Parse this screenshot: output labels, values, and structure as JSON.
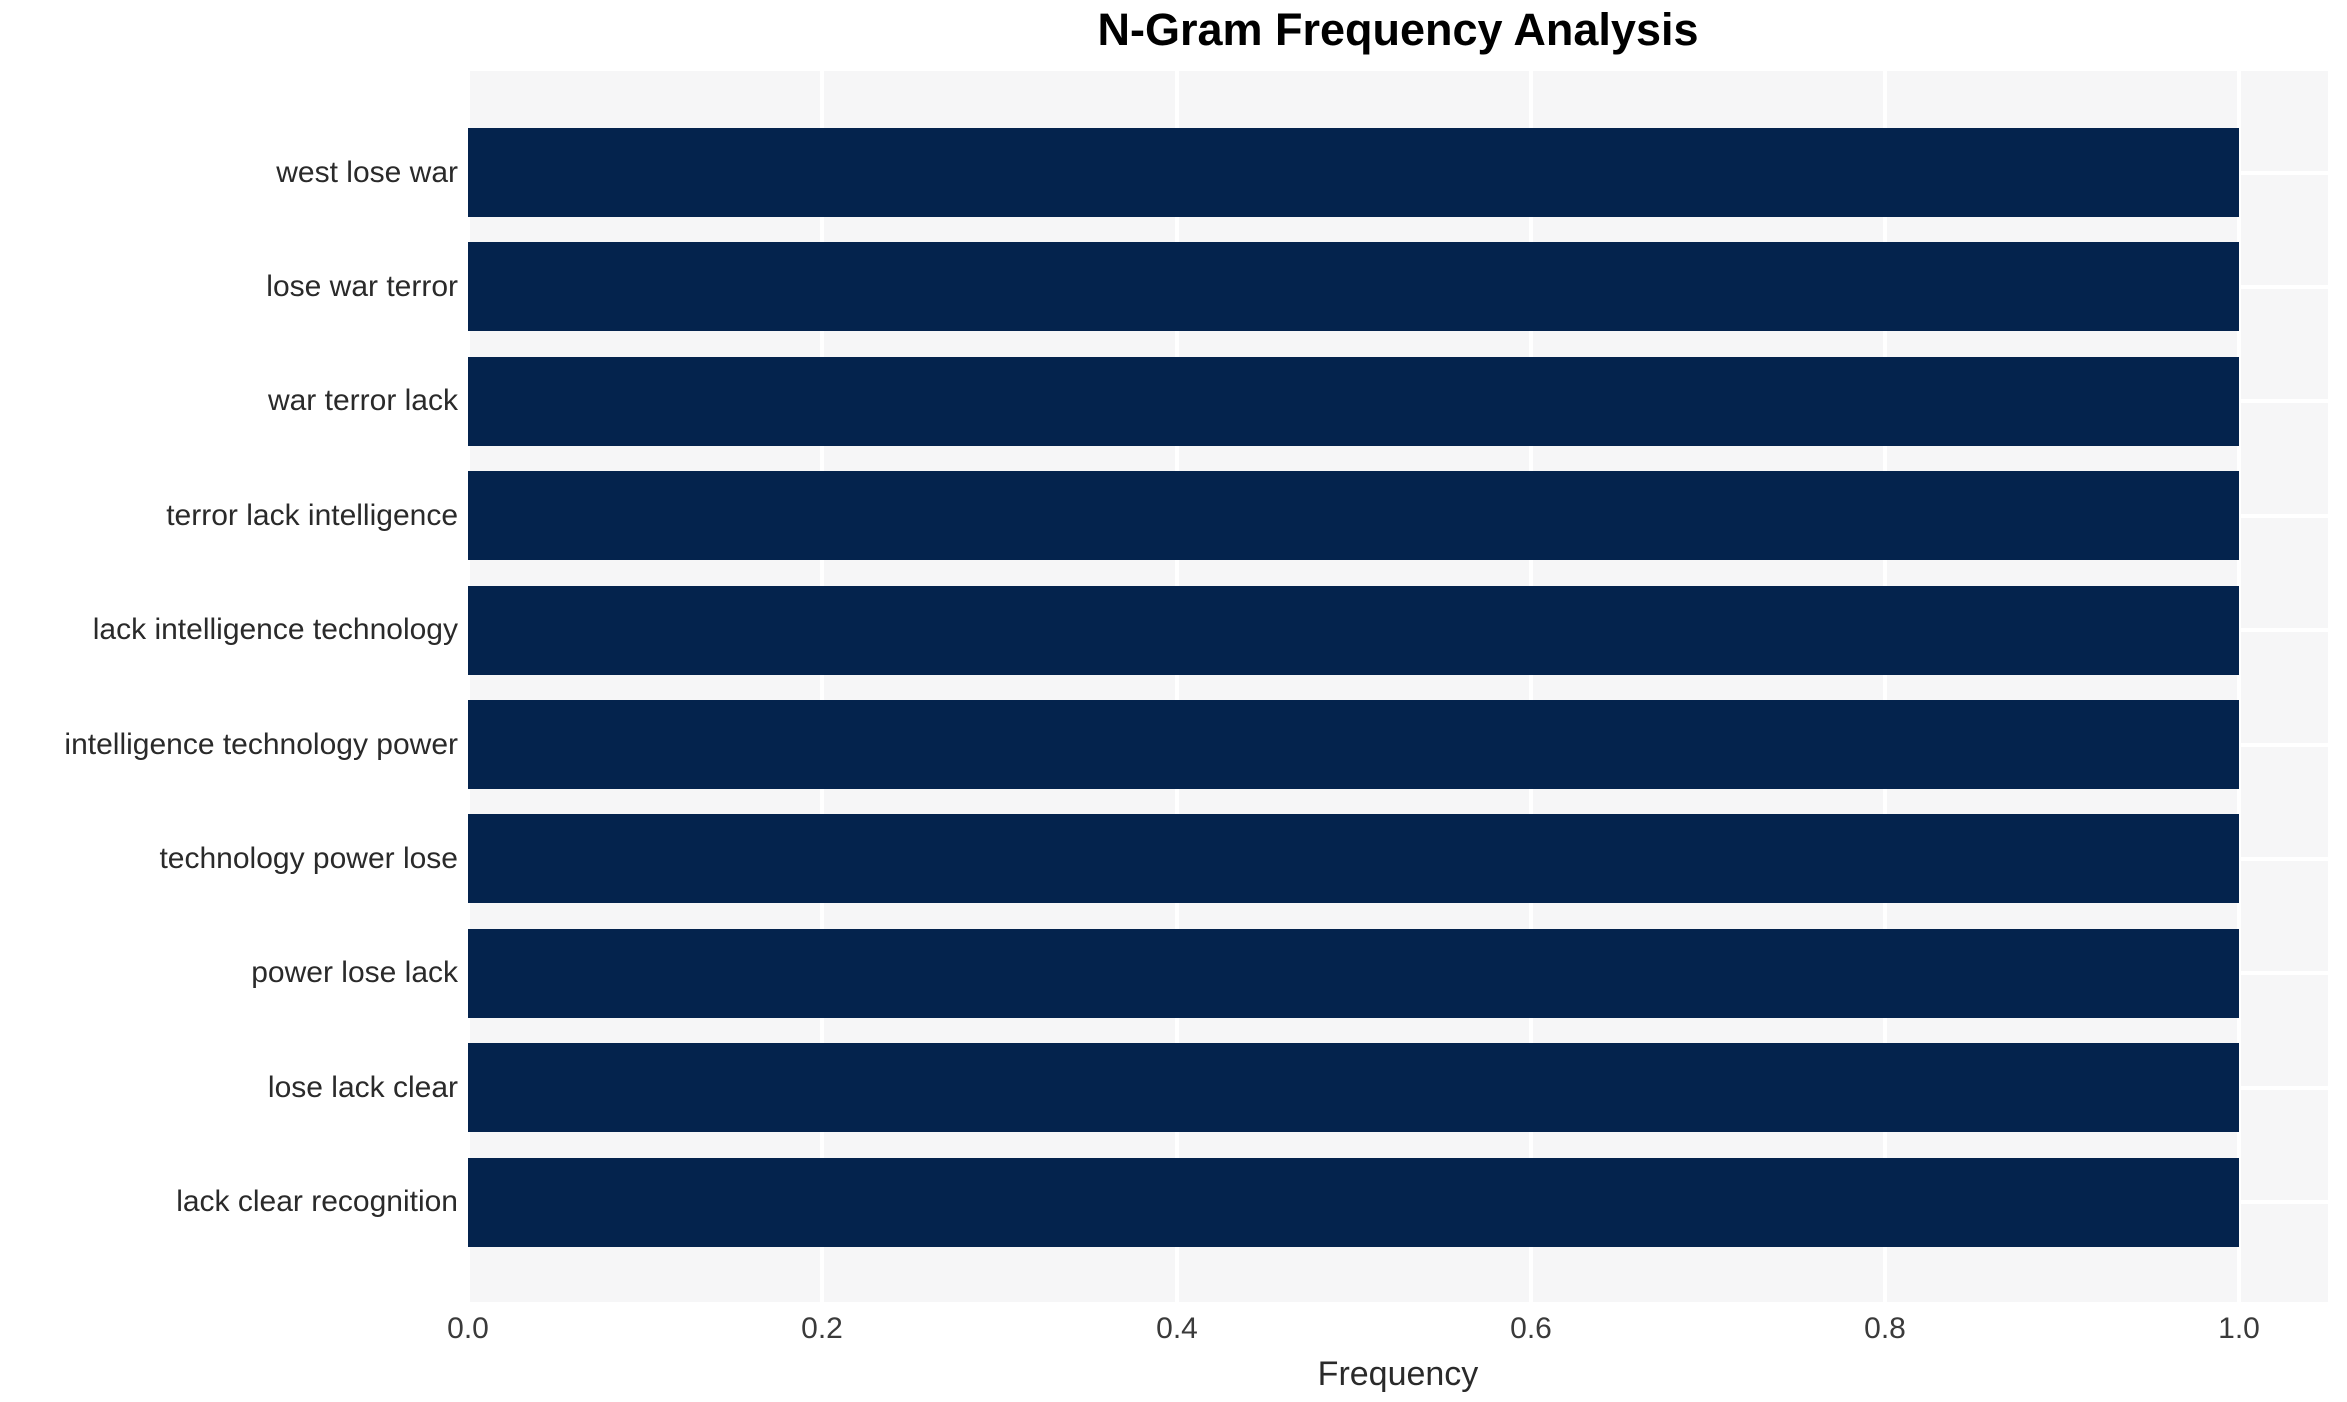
{
  "chart_data": {
    "type": "bar",
    "orientation": "horizontal",
    "title": "N-Gram Frequency Analysis",
    "xlabel": "Frequency",
    "ylabel": "",
    "categories": [
      "west lose war",
      "lose war terror",
      "war terror lack",
      "terror lack intelligence",
      "lack intelligence technology",
      "intelligence technology power",
      "technology power lose",
      "power lose lack",
      "lose lack clear",
      "lack clear recognition"
    ],
    "values": [
      1.0,
      1.0,
      1.0,
      1.0,
      1.0,
      1.0,
      1.0,
      1.0,
      1.0,
      1.0
    ],
    "xticks": [
      "0.0",
      "0.2",
      "0.4",
      "0.6",
      "0.8",
      "1.0"
    ],
    "xtick_values": [
      0.0,
      0.2,
      0.4,
      0.6,
      0.8,
      1.0
    ],
    "xlim": [
      0.0,
      1.05
    ],
    "grid": true,
    "legend": null,
    "colors": {
      "bar": "#04234d",
      "plot_background": "#f6f6f7",
      "gridline": "#ffffff",
      "figure_background": "#ffffff",
      "title_text": "#000000",
      "label_text": "#2a2a2a",
      "tick_text": "#3a3a3a"
    }
  }
}
